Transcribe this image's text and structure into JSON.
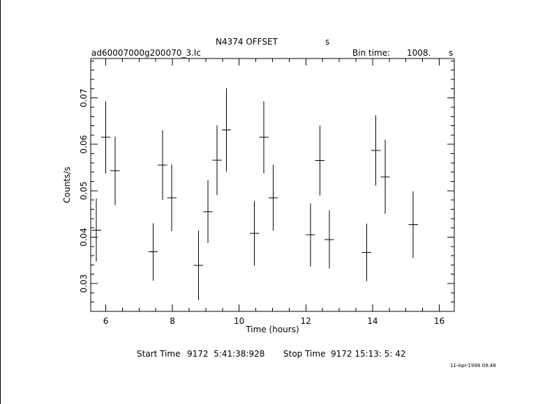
{
  "header": {
    "title": "N4374 OFFSET",
    "title_unit": "s",
    "filename": "ad60007000g200070_3.lc",
    "bin_time_label": "Bin time:",
    "bin_time_value": "1008.",
    "bin_time_unit": "s"
  },
  "footer": {
    "start_label": "Start Time",
    "start_value": "9172  5:41:38:928",
    "stop_label": "Stop Time",
    "stop_value": "9172 15:13: 5: 42",
    "stamp": "11-Apr-1998 09:48"
  },
  "chart_data": {
    "type": "scatter",
    "xlabel": "Time (hours)",
    "ylabel": "Counts/s",
    "xlim": [
      5.55,
      16.45
    ],
    "ylim": [
      0.024,
      0.0785
    ],
    "xticks": [
      6,
      8,
      10,
      12,
      14,
      16
    ],
    "xtick_labels": [
      "6",
      "8",
      "10",
      "12",
      "14",
      "16"
    ],
    "yticks": [
      0.03,
      0.04,
      0.05,
      0.06,
      0.07
    ],
    "ytick_labels": [
      "0.03",
      "0.04",
      "0.05",
      "0.06",
      "0.07"
    ],
    "grid": false,
    "x_half_width": 0.14,
    "points": [
      {
        "x": 5.72,
        "y": 0.0415,
        "yerr": 0.0068
      },
      {
        "x": 6.0,
        "y": 0.0615,
        "yerr": 0.0078
      },
      {
        "x": 6.28,
        "y": 0.0543,
        "yerr": 0.0074
      },
      {
        "x": 7.42,
        "y": 0.0368,
        "yerr": 0.0062
      },
      {
        "x": 7.7,
        "y": 0.0555,
        "yerr": 0.0075
      },
      {
        "x": 7.98,
        "y": 0.0485,
        "yerr": 0.0072
      },
      {
        "x": 8.78,
        "y": 0.0339,
        "yerr": 0.0075
      },
      {
        "x": 9.06,
        "y": 0.0455,
        "yerr": 0.0068
      },
      {
        "x": 9.34,
        "y": 0.0566,
        "yerr": 0.0075
      },
      {
        "x": 9.62,
        "y": 0.0631,
        "yerr": 0.009
      },
      {
        "x": 10.46,
        "y": 0.0408,
        "yerr": 0.007
      },
      {
        "x": 10.74,
        "y": 0.0615,
        "yerr": 0.0078
      },
      {
        "x": 11.02,
        "y": 0.0485,
        "yerr": 0.0071
      },
      {
        "x": 12.14,
        "y": 0.0405,
        "yerr": 0.0068
      },
      {
        "x": 12.42,
        "y": 0.0565,
        "yerr": 0.0075
      },
      {
        "x": 12.7,
        "y": 0.0395,
        "yerr": 0.0063
      },
      {
        "x": 13.82,
        "y": 0.0367,
        "yerr": 0.0062
      },
      {
        "x": 14.1,
        "y": 0.0587,
        "yerr": 0.0076
      },
      {
        "x": 14.38,
        "y": 0.053,
        "yerr": 0.008
      },
      {
        "x": 15.22,
        "y": 0.0427,
        "yerr": 0.0072
      }
    ]
  }
}
